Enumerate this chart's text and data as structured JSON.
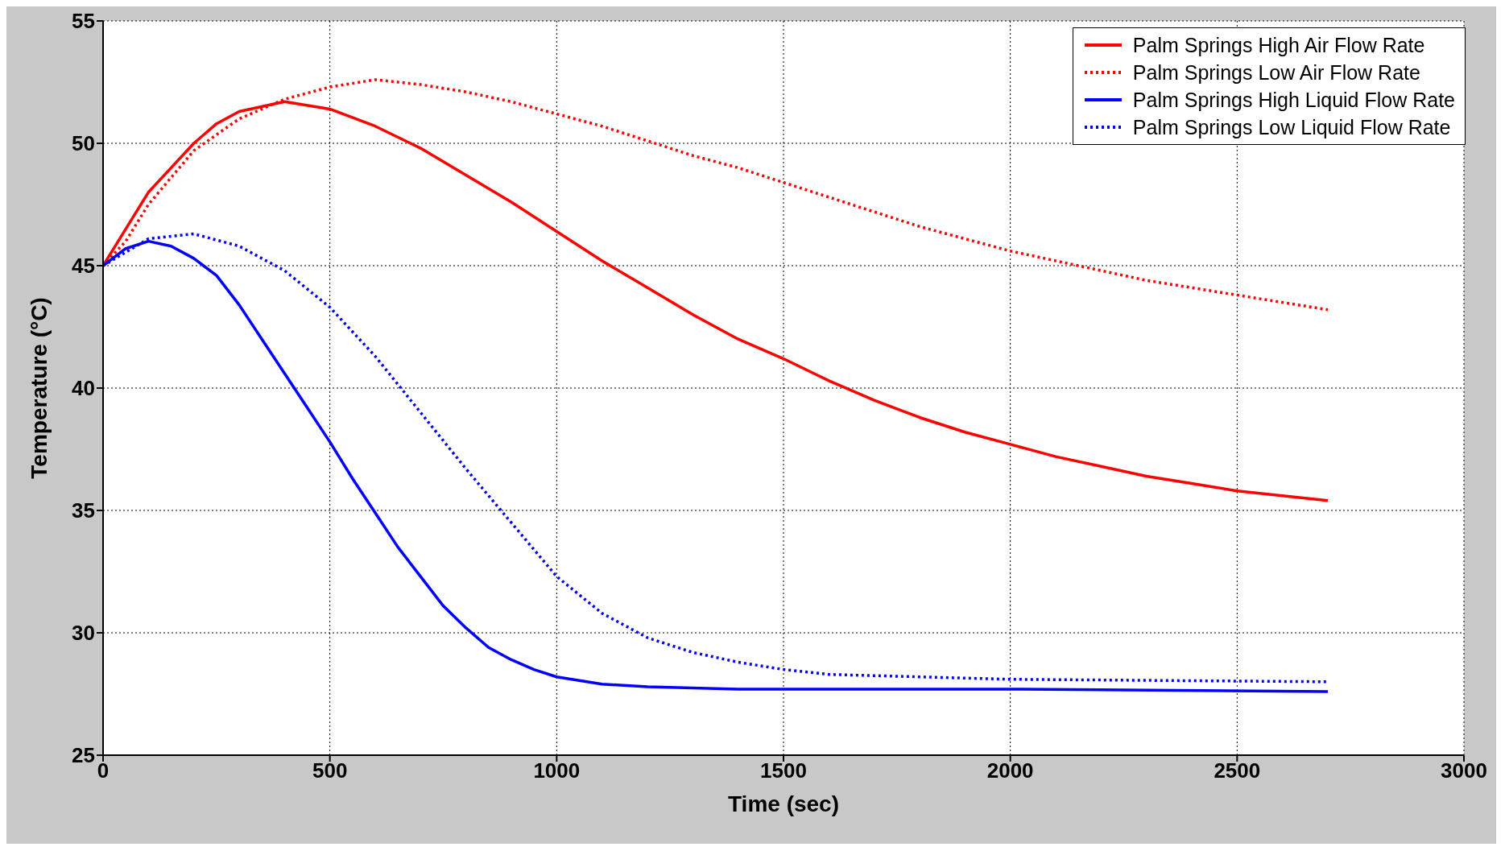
{
  "chart_data": {
    "type": "line",
    "xlabel": "Time (sec)",
    "ylabel": "Temperature (°C)",
    "xlim": [
      0,
      3000
    ],
    "xticks": [
      0,
      500,
      1000,
      1500,
      2000,
      2500,
      3000
    ],
    "ylim": [
      25,
      55
    ],
    "yticks": [
      25,
      30,
      35,
      40,
      45,
      50,
      55
    ],
    "grid": true,
    "legend": "top right",
    "marker": "none",
    "series": [
      {
        "name": "Palm Springs High Air Flow Rate",
        "color": "#ff0000",
        "line_style": "solid",
        "x": [
          0,
          50,
          100,
          150,
          200,
          250,
          300,
          400,
          500,
          600,
          700,
          800,
          900,
          1000,
          1100,
          1200,
          1300,
          1400,
          1500,
          1600,
          1700,
          1800,
          1900,
          2000,
          2100,
          2200,
          2300,
          2400,
          2500,
          2600,
          2700
        ],
        "values": [
          45,
          46.5,
          48,
          49,
          50,
          50.8,
          51.3,
          51.7,
          51.4,
          50.7,
          49.8,
          48.7,
          47.6,
          46.4,
          45.2,
          44.1,
          43,
          42,
          41.2,
          40.3,
          39.5,
          38.8,
          38.2,
          37.7,
          37.2,
          36.8,
          36.4,
          36.1,
          35.8,
          35.6,
          35.4
        ]
      },
      {
        "name": "Palm Springs Low Air Flow Rate",
        "color": "#ff0000",
        "line_style": "dotted",
        "x": [
          0,
          50,
          100,
          150,
          200,
          300,
          400,
          500,
          600,
          700,
          800,
          900,
          1000,
          1100,
          1200,
          1300,
          1400,
          1500,
          1600,
          1700,
          1800,
          1900,
          2000,
          2100,
          2200,
          2300,
          2400,
          2500,
          2600,
          2700
        ],
        "values": [
          45,
          46,
          47.5,
          48.6,
          49.7,
          51,
          51.8,
          52.3,
          52.6,
          52.4,
          52.1,
          51.7,
          51.2,
          50.7,
          50.1,
          49.5,
          49,
          48.4,
          47.8,
          47.2,
          46.6,
          46.1,
          45.6,
          45.2,
          44.8,
          44.4,
          44.1,
          43.8,
          43.5,
          43.2
        ]
      },
      {
        "name": "Palm Springs High Liquid Flow Rate",
        "color": "#0000ff",
        "line_style": "solid",
        "x": [
          0,
          50,
          100,
          150,
          200,
          250,
          300,
          350,
          400,
          450,
          500,
          550,
          600,
          650,
          700,
          750,
          800,
          850,
          900,
          950,
          1000,
          1100,
          1200,
          1400,
          1600,
          2000,
          2700
        ],
        "values": [
          45,
          45.7,
          46,
          45.8,
          45.3,
          44.6,
          43.4,
          42,
          40.6,
          39.2,
          37.8,
          36.3,
          34.9,
          33.5,
          32.3,
          31.1,
          30.2,
          29.4,
          28.9,
          28.5,
          28.2,
          27.9,
          27.8,
          27.7,
          27.7,
          27.7,
          27.6
        ]
      },
      {
        "name": "Palm Springs Low Liquid Flow Rate",
        "color": "#0000ff",
        "line_style": "dotted",
        "x": [
          0,
          100,
          200,
          300,
          400,
          500,
          600,
          700,
          800,
          900,
          1000,
          1100,
          1200,
          1300,
          1400,
          1500,
          1600,
          1800,
          2000,
          2700
        ],
        "values": [
          45,
          46.1,
          46.3,
          45.8,
          44.8,
          43.3,
          41.3,
          39,
          36.7,
          34.5,
          32.3,
          30.8,
          29.8,
          29.2,
          28.8,
          28.5,
          28.3,
          28.2,
          28.1,
          28
        ]
      }
    ]
  }
}
